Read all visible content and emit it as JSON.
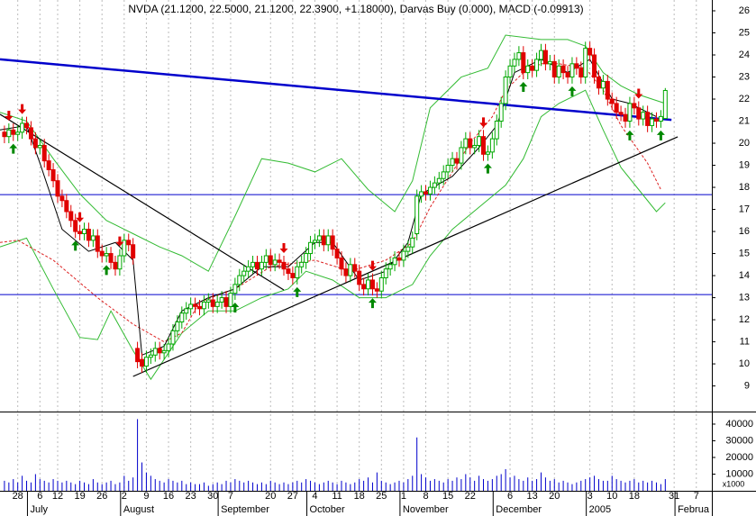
{
  "chart_data": {
    "type": "candlestick",
    "title": "NVDA (21.1200, 22.5000, 21.1200, 22.3900, +1.18000), Darvas Buy (0.000), MACD (-0.09913)",
    "x": [
      -3,
      -2,
      -1,
      0,
      1,
      2,
      3,
      4,
      5,
      6,
      7,
      8,
      9,
      10,
      11,
      12,
      13,
      14,
      15,
      16,
      17,
      18,
      19,
      20,
      21,
      22,
      23,
      24,
      25,
      26,
      27,
      28,
      29,
      30,
      31,
      32,
      33,
      34,
      35,
      36,
      37,
      38,
      39,
      40,
      41,
      42,
      43,
      44,
      45,
      46,
      47,
      48,
      49,
      50,
      51,
      52,
      53,
      54,
      55,
      56,
      57,
      58,
      59,
      60,
      61,
      62,
      63,
      64,
      65,
      66,
      67,
      68,
      69,
      70,
      71,
      72,
      73,
      74,
      75,
      76,
      77,
      78,
      79,
      80,
      81,
      82,
      83,
      84,
      85,
      86,
      87,
      88,
      89,
      90,
      91,
      92,
      93,
      94,
      95,
      96,
      97,
      98,
      99,
      100,
      101,
      102,
      103,
      104,
      105,
      106,
      107,
      108,
      109,
      110,
      111,
      112,
      113,
      114,
      115,
      116,
      117,
      118,
      119,
      120,
      121,
      122,
      123,
      124,
      125,
      126,
      127,
      128,
      129,
      130,
      131,
      132,
      133,
      134,
      135,
      136,
      137,
      138,
      139,
      140,
      141,
      142,
      143,
      144,
      145,
      146
    ],
    "open": [
      20.5,
      20.3,
      20.6,
      20.4,
      20.5,
      20.9,
      20.7,
      20.2,
      19.8,
      19.9,
      19.2,
      18.8,
      18.3,
      17.6,
      17.4,
      16.9,
      16.5,
      16.0,
      15.9,
      16.1,
      15.6,
      15.8,
      15.1,
      14.9,
      15.0,
      14.6,
      14.3,
      14.9,
      15.6,
      15.4,
      10.7,
      10.2,
      9.9,
      10.3,
      10.4,
      10.7,
      10.5,
      10.6,
      10.9,
      11.5,
      11.9,
      12.3,
      12.5,
      12.7,
      12.6,
      12.5,
      12.8,
      12.9,
      12.6,
      12.8,
      13.0,
      12.6,
      13.2,
      13.6,
      14.0,
      14.2,
      14.4,
      14.6,
      14.3,
      14.6,
      14.9,
      14.5,
      14.7,
      14.6,
      14.3,
      14.1,
      13.9,
      14.4,
      14.6,
      15.0,
      15.5,
      15.6,
      15.8,
      15.4,
      15.8,
      15.2,
      14.8,
      14.3,
      14.0,
      14.5,
      14.2,
      13.6,
      13.4,
      13.8,
      13.4,
      13.3,
      13.9,
      14.3,
      14.5,
      14.8,
      14.7,
      15.1,
      15.3,
      15.9,
      17.6,
      17.8,
      17.7,
      18.0,
      18.2,
      18.4,
      18.7,
      19.0,
      19.3,
      19.1,
      19.8,
      20.2,
      19.8,
      19.9,
      20.3,
      19.5,
      19.6,
      20.2,
      21.0,
      21.8,
      23.0,
      23.5,
      23.8,
      24.1,
      23.2,
      23.5,
      23.3,
      23.8,
      24.2,
      23.6,
      23.7,
      23.0,
      23.5,
      23.2,
      23.0,
      23.6,
      23.4,
      23.0,
      24.3,
      24.0,
      23.0,
      22.5,
      22.8,
      22.0,
      21.8,
      21.4,
      21.3,
      21.0,
      21.8,
      21.6,
      21.1,
      21.4,
      20.8,
      21.1,
      21.0,
      21.12
    ],
    "high": [
      20.8,
      20.9,
      20.9,
      20.8,
      21.2,
      21.2,
      21.0,
      20.5,
      20.2,
      20.2,
      19.5,
      19.1,
      18.6,
      17.9,
      17.7,
      17.2,
      16.8,
      16.3,
      16.4,
      16.4,
      16.1,
      16.1,
      15.4,
      15.3,
      15.3,
      14.9,
      15.2,
      15.9,
      15.9,
      15.7,
      11.0,
      10.5,
      10.6,
      10.7,
      11.0,
      11.0,
      10.9,
      11.2,
      11.8,
      12.2,
      12.6,
      12.8,
      13.0,
      13.0,
      12.9,
      13.1,
      13.2,
      13.2,
      13.1,
      13.3,
      13.3,
      13.5,
      13.9,
      14.3,
      14.5,
      14.7,
      14.9,
      14.9,
      14.9,
      15.2,
      15.2,
      15.0,
      15.0,
      14.9,
      14.6,
      14.4,
      14.7,
      14.9,
      15.3,
      15.8,
      15.9,
      16.1,
      16.1,
      16.1,
      16.1,
      15.5,
      15.1,
      14.6,
      14.8,
      14.8,
      14.5,
      13.9,
      14.1,
      14.1,
      13.7,
      14.2,
      14.6,
      14.8,
      15.1,
      15.1,
      15.4,
      15.6,
      16.0,
      17.9,
      18.1,
      18.1,
      18.3,
      18.5,
      18.7,
      19.0,
      19.3,
      19.6,
      19.6,
      20.1,
      20.5,
      20.5,
      20.2,
      20.6,
      20.6,
      19.9,
      20.5,
      21.3,
      22.1,
      23.3,
      23.8,
      24.1,
      24.4,
      24.4,
      23.8,
      23.8,
      24.1,
      24.5,
      24.5,
      24.0,
      24.0,
      23.8,
      23.8,
      23.5,
      23.9,
      23.9,
      23.7,
      24.6,
      24.6,
      24.3,
      23.3,
      23.1,
      23.1,
      22.3,
      22.1,
      21.7,
      21.6,
      22.1,
      22.1,
      21.9,
      21.7,
      21.7,
      21.4,
      21.4,
      21.5,
      22.5
    ],
    "low": [
      20.0,
      20.0,
      20.1,
      20.1,
      20.2,
      20.4,
      19.9,
      19.5,
      19.5,
      18.9,
      18.5,
      18.0,
      17.3,
      17.1,
      16.6,
      16.2,
      15.7,
      15.6,
      15.6,
      15.3,
      15.3,
      14.8,
      14.6,
      14.6,
      14.3,
      14.0,
      14.0,
      14.6,
      15.1,
      14.5,
      9.8,
      9.6,
      9.6,
      10.0,
      10.1,
      10.2,
      10.2,
      10.3,
      10.6,
      11.2,
      11.6,
      12.0,
      12.2,
      12.3,
      12.2,
      12.2,
      12.5,
      12.3,
      12.3,
      12.5,
      12.3,
      12.3,
      12.9,
      13.3,
      13.7,
      13.9,
      14.1,
      14.0,
      14.0,
      14.3,
      14.2,
      14.2,
      14.3,
      14.0,
      13.8,
      13.6,
      13.6,
      14.1,
      14.3,
      14.7,
      15.2,
      15.3,
      15.1,
      15.1,
      14.9,
      14.5,
      14.0,
      13.7,
      13.7,
      13.9,
      13.3,
      13.1,
      13.1,
      13.1,
      13.0,
      13.0,
      13.6,
      14.0,
      14.2,
      14.4,
      14.4,
      14.8,
      15.0,
      15.6,
      17.3,
      17.4,
      17.4,
      17.7,
      17.9,
      18.1,
      18.4,
      18.7,
      18.8,
      18.8,
      19.5,
      19.5,
      19.5,
      19.6,
      19.2,
      19.2,
      19.3,
      19.9,
      20.7,
      21.5,
      22.7,
      23.2,
      23.5,
      22.9,
      22.9,
      23.0,
      23.0,
      23.5,
      23.3,
      23.3,
      22.7,
      22.7,
      22.9,
      22.7,
      22.7,
      23.1,
      22.7,
      22.7,
      23.7,
      22.7,
      22.2,
      22.2,
      21.7,
      21.5,
      21.1,
      21.0,
      20.7,
      20.7,
      21.3,
      20.8,
      20.8,
      20.5,
      20.5,
      20.7,
      20.7,
      21.12
    ],
    "close": [
      20.3,
      20.6,
      20.4,
      20.5,
      20.9,
      20.7,
      20.2,
      19.8,
      19.9,
      19.2,
      18.8,
      18.3,
      17.6,
      17.4,
      16.9,
      16.5,
      16.0,
      15.9,
      16.1,
      15.6,
      15.8,
      15.1,
      14.9,
      15.0,
      14.6,
      14.3,
      14.9,
      15.6,
      15.4,
      14.8,
      10.1,
      9.9,
      10.3,
      10.4,
      10.7,
      10.5,
      10.6,
      10.9,
      11.5,
      11.9,
      12.3,
      12.5,
      12.7,
      12.6,
      12.5,
      12.8,
      12.9,
      12.6,
      12.8,
      13.0,
      12.6,
      13.2,
      13.6,
      14.0,
      14.2,
      14.4,
      14.6,
      14.3,
      14.6,
      14.9,
      14.5,
      14.7,
      14.6,
      14.3,
      14.1,
      13.9,
      14.4,
      14.6,
      15.0,
      15.5,
      15.6,
      15.8,
      15.4,
      15.8,
      15.2,
      14.8,
      14.3,
      14.0,
      14.5,
      14.2,
      13.6,
      13.4,
      13.8,
      13.4,
      13.3,
      13.9,
      14.3,
      14.5,
      14.8,
      14.7,
      15.1,
      15.3,
      15.7,
      17.6,
      17.8,
      17.7,
      18.0,
      18.2,
      18.4,
      18.7,
      19.0,
      19.3,
      19.1,
      19.8,
      20.2,
      19.8,
      19.9,
      20.3,
      19.5,
      19.6,
      20.2,
      21.0,
      21.8,
      23.0,
      23.5,
      23.8,
      24.1,
      23.2,
      23.5,
      23.3,
      23.8,
      24.2,
      23.6,
      23.7,
      23.0,
      23.5,
      23.2,
      23.0,
      23.6,
      23.4,
      23.0,
      24.3,
      24.0,
      23.0,
      22.5,
      22.8,
      22.0,
      21.8,
      21.4,
      21.3,
      21.0,
      21.8,
      21.6,
      21.1,
      21.4,
      20.8,
      21.1,
      21.0,
      21.21,
      22.39
    ],
    "up_color": "#00a800",
    "down_color": "#e00000",
    "xlim": [
      -4,
      156.5
    ],
    "xticks": [
      {
        "value": 0,
        "label": "28"
      },
      {
        "value": 5,
        "label": "6"
      },
      {
        "value": 9,
        "label": "12"
      },
      {
        "value": 14,
        "label": "19"
      },
      {
        "value": 19,
        "label": "26"
      },
      {
        "value": 24,
        "label": "2"
      },
      {
        "value": 29,
        "label": "9"
      },
      {
        "value": 34,
        "label": "16"
      },
      {
        "value": 39,
        "label": "23"
      },
      {
        "value": 44,
        "label": "30"
      },
      {
        "value": 48,
        "label": "7"
      },
      {
        "value": 57,
        "label": "20"
      },
      {
        "value": 62,
        "label": "27"
      },
      {
        "value": 67,
        "label": "4"
      },
      {
        "value": 72,
        "label": "11"
      },
      {
        "value": 77,
        "label": "18"
      },
      {
        "value": 82,
        "label": "25"
      },
      {
        "value": 87,
        "label": "1"
      },
      {
        "value": 92,
        "label": "8"
      },
      {
        "value": 97,
        "label": "15"
      },
      {
        "value": 102,
        "label": "22"
      },
      {
        "value": 111,
        "label": "6"
      },
      {
        "value": 116,
        "label": "13"
      },
      {
        "value": 121,
        "label": "20"
      },
      {
        "value": 129,
        "label": "3"
      },
      {
        "value": 134,
        "label": "10"
      },
      {
        "value": 139,
        "label": "18"
      },
      {
        "value": 148,
        "label": "31"
      },
      {
        "value": 153,
        "label": "7"
      }
    ],
    "months": [
      {
        "value": 3,
        "label": "July"
      },
      {
        "value": 24,
        "label": "August"
      },
      {
        "value": 46,
        "label": "September"
      },
      {
        "value": 66,
        "label": "October"
      },
      {
        "value": 87,
        "label": "November"
      },
      {
        "value": 108,
        "label": "December"
      },
      {
        "value": 129,
        "label": "2005"
      },
      {
        "value": 149,
        "label": "Februa"
      }
    ],
    "ylim": [
      7.84,
      26.49
    ],
    "yticks": [
      9,
      10,
      11,
      12,
      13,
      14,
      15,
      16,
      17,
      18,
      19,
      20,
      21,
      22,
      23,
      24,
      25,
      26
    ],
    "grid": true,
    "overlays": [
      {
        "color": "#33bb33",
        "dash": false,
        "x": [
          -4,
          2,
          8,
          14,
          20,
          26,
          32,
          37,
          43,
          49,
          55,
          61,
          67,
          73,
          79,
          85,
          89,
          93,
          100,
          106,
          110,
          118,
          124,
          128,
          132,
          136,
          140,
          146
        ],
        "values": [
          21.4,
          21.0,
          19.3,
          17.7,
          16.5,
          15.9,
          15.3,
          14.9,
          14.2,
          16.7,
          19.3,
          19.1,
          18.7,
          19.3,
          17.9,
          16.9,
          18.3,
          21.6,
          23.0,
          23.4,
          24.9,
          24.7,
          24.7,
          24.4,
          23.2,
          22.6,
          22.2,
          21.8
        ]
      },
      {
        "color": "#33bb33",
        "dash": false,
        "x": [
          -4,
          2,
          8,
          14,
          18,
          21,
          26,
          30,
          37,
          43,
          49,
          55,
          61,
          65,
          71,
          77,
          83,
          89,
          93,
          98,
          104,
          110,
          114,
          118,
          122,
          128,
          132,
          136,
          140,
          144,
          146
        ],
        "values": [
          15.3,
          15.7,
          13.4,
          11.2,
          11.1,
          12.4,
          10.6,
          9.3,
          11.4,
          12.4,
          12.4,
          13.0,
          13.4,
          14.2,
          13.8,
          13.0,
          13.0,
          13.6,
          14.9,
          16.1,
          17.1,
          18.1,
          19.3,
          21.2,
          21.8,
          22.4,
          20.6,
          18.9,
          17.9,
          16.9,
          17.3
        ]
      },
      {
        "color": "#dd2222",
        "dash": true,
        "x": [
          -4,
          0,
          8,
          18,
          26,
          33,
          37,
          41,
          49,
          57,
          67,
          75,
          83,
          89,
          93,
          98,
          102,
          107,
          110,
          114,
          118,
          122,
          128,
          132,
          136,
          142,
          145
        ],
        "values": [
          15.5,
          15.6,
          14.7,
          13.0,
          11.8,
          11.0,
          11.4,
          12.8,
          13.4,
          14.4,
          14.7,
          14.2,
          14.7,
          15.5,
          17.1,
          18.7,
          20.0,
          21.2,
          22.4,
          23.2,
          23.6,
          23.6,
          23.4,
          22.4,
          20.8,
          19.1,
          17.9
        ]
      },
      {
        "color": "#000000",
        "dash": false,
        "x": [
          -4,
          2,
          5,
          10,
          16,
          22,
          26,
          28,
          33,
          37,
          43,
          49,
          55,
          61,
          67,
          71,
          77,
          83,
          88,
          91,
          98,
          104,
          108,
          112,
          118,
          124,
          129,
          134,
          138,
          144
        ],
        "values": [
          20.6,
          20.8,
          19.1,
          16.1,
          15.1,
          15.5,
          14.7,
          10.4,
          10.8,
          12.4,
          13.0,
          13.4,
          14.4,
          14.4,
          15.5,
          15.5,
          13.8,
          14.2,
          15.5,
          17.7,
          18.5,
          19.8,
          20.8,
          23.2,
          23.8,
          23.2,
          23.8,
          22.0,
          21.8,
          21.2
        ]
      }
    ],
    "trendlines": [
      {
        "color": "#0000cc",
        "width": 2.5,
        "x": [
          -4,
          147.4
        ],
        "values": [
          23.8,
          21.06
        ]
      },
      {
        "color": "#000000",
        "width": 1.2,
        "x": [
          -4,
          60
        ],
        "values": [
          21.31,
          13.35
        ]
      },
      {
        "color": "#000000",
        "width": 1.2,
        "x": [
          26,
          148.8
        ],
        "values": [
          9.43,
          20.29
        ]
      }
    ],
    "hlines": [
      {
        "value": 17.67,
        "color": "#0000cc"
      },
      {
        "value": 13.14,
        "color": "#0000cc"
      }
    ],
    "sell_signals": [
      -2,
      1,
      14,
      23,
      60,
      80,
      105,
      140
    ],
    "buy_signals": [
      -1,
      13,
      20,
      49,
      63,
      80,
      106,
      114,
      125,
      138,
      145
    ],
    "volume": {
      "color": "#0000cc",
      "ylim": [
        0,
        47000
      ],
      "yticks": [
        10000,
        20000,
        30000,
        40000
      ],
      "unit_label": "x1000",
      "values": [
        6000,
        5000,
        7000,
        5000,
        9000,
        6000,
        5000,
        10000,
        7000,
        6000,
        5000,
        7000,
        6000,
        5000,
        6000,
        5000,
        4000,
        6000,
        5000,
        4000,
        7000,
        5000,
        4000,
        5000,
        6000,
        4000,
        5000,
        9000,
        6000,
        8000,
        43000,
        17000,
        11000,
        9000,
        7000,
        6000,
        5000,
        7000,
        6000,
        5000,
        6000,
        4000,
        5000,
        4000,
        4000,
        5000,
        3000,
        4000,
        5000,
        4000,
        6000,
        5000,
        7000,
        6000,
        5000,
        6000,
        5000,
        4000,
        5000,
        4000,
        6000,
        5000,
        4000,
        5000,
        4000,
        5000,
        6000,
        5000,
        7000,
        6000,
        5000,
        4000,
        5000,
        6000,
        5000,
        4000,
        6000,
        5000,
        4000,
        5000,
        7000,
        6000,
        8000,
        5000,
        11000,
        6000,
        5000,
        4000,
        5000,
        6000,
        5000,
        7000,
        9000,
        32000,
        10000,
        8000,
        6000,
        7000,
        6000,
        5000,
        7000,
        6000,
        8000,
        7000,
        10000,
        8000,
        6000,
        9000,
        7000,
        6000,
        7000,
        9000,
        10000,
        13000,
        8000,
        9000,
        7000,
        6000,
        8000,
        6000,
        7000,
        11000,
        8000,
        6000,
        7000,
        5000,
        6000,
        5000,
        4000,
        5000,
        6000,
        7000,
        8000,
        9000,
        7000,
        6000,
        6000,
        9000,
        7000,
        6000,
        5000,
        6000,
        7000,
        5000,
        6000,
        5000,
        6000,
        5000,
        4000,
        7000
      ]
    }
  }
}
